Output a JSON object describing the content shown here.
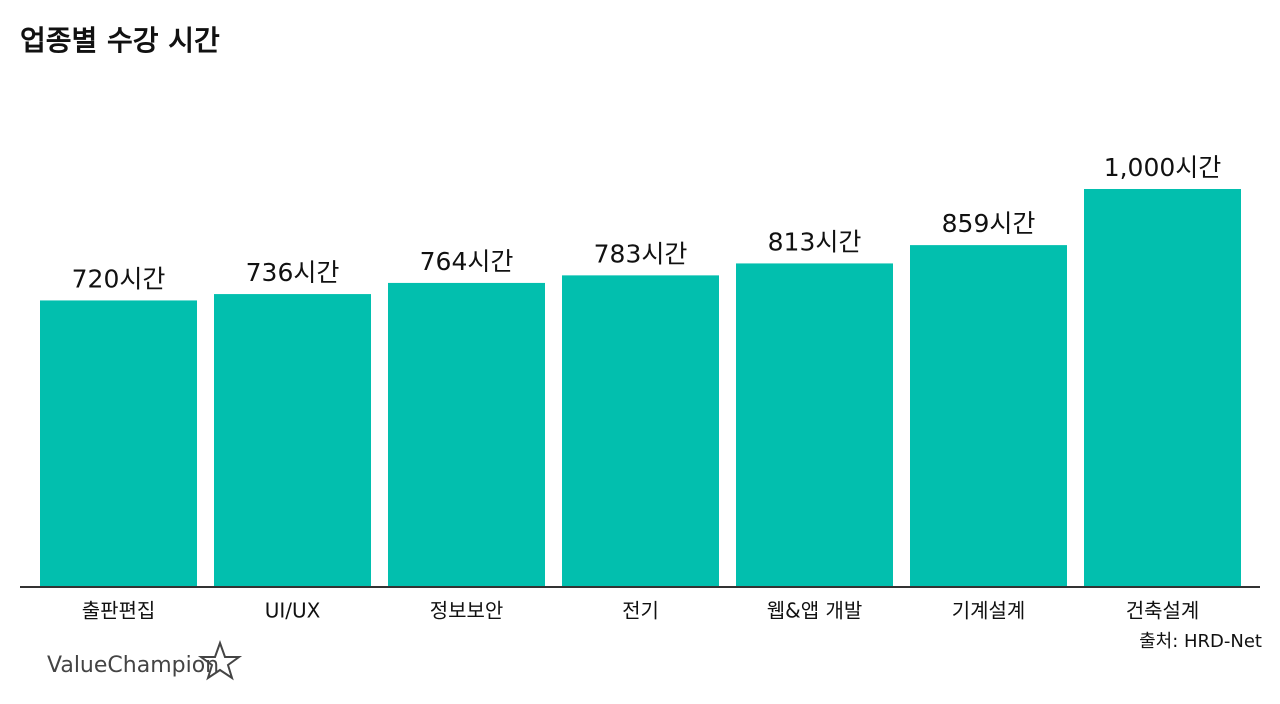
{
  "chart_data": {
    "type": "bar",
    "title": "업종별 수강 시간",
    "categories": [
      "출판편집",
      "UI/UX",
      "정보보안",
      "전기",
      "웹&앱 개발",
      "기계설계",
      "건축설계"
    ],
    "values": [
      720,
      736,
      764,
      783,
      813,
      859,
      1000
    ],
    "value_labels": [
      "720시간",
      "736시간",
      "764시간",
      "783시간",
      "813시간",
      "859시간",
      "1,000시간"
    ],
    "color": "#02bfae",
    "ylim": [
      0,
      1000
    ],
    "source": "출처: HRD-Net",
    "logo": "ValueChampion"
  }
}
